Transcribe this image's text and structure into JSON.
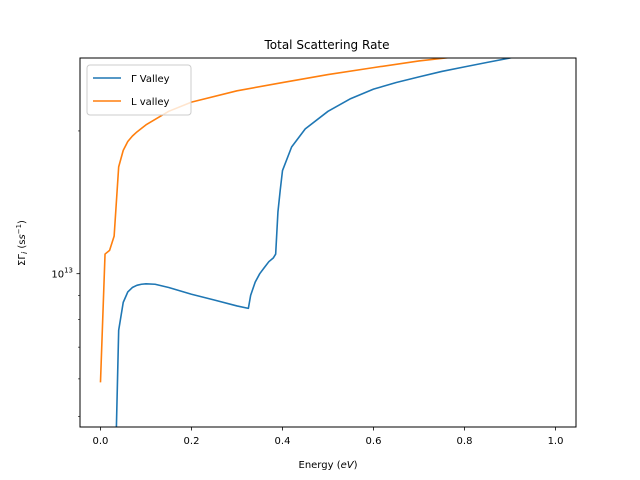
{
  "chart_data": {
    "type": "line",
    "title": "Total Scattering Rate",
    "xlabel_main": "Energy (",
    "xlabel_unit": "eV",
    "xlabel_close": ")",
    "ylabel_main": "ΣΓ",
    "ylabel_sub": "i",
    "ylabel_unit_open": " (s",
    "ylabel_unit_sup": "−1",
    "ylabel_unit_close": ")",
    "xlim": [
      -0.045,
      1.045
    ],
    "ylim": [
      4750000000000.0,
      28500000000000.0
    ],
    "yscale": "log",
    "grid": false,
    "legend_position": "upper-left",
    "x_ticks": [
      {
        "value": 0.0,
        "label": "0.0"
      },
      {
        "value": 0.2,
        "label": "0.2"
      },
      {
        "value": 0.4,
        "label": "0.4"
      },
      {
        "value": 0.6,
        "label": "0.6"
      },
      {
        "value": 0.8,
        "label": "0.8"
      },
      {
        "value": 1.0,
        "label": "1.0"
      }
    ],
    "y_major_ticks": [
      {
        "value": 10000000000000.0,
        "label_base": "10",
        "label_exp": "13"
      }
    ],
    "y_minor_ticks": [
      5000000000000.0,
      6000000000000.0,
      7000000000000.0,
      8000000000000.0,
      9000000000000.0,
      20000000000000.0
    ],
    "series": [
      {
        "name": "Γ Valley",
        "color": "#1f77b4",
        "x": [
          0.035,
          0.04,
          0.05,
          0.06,
          0.07,
          0.08,
          0.09,
          0.1,
          0.12,
          0.15,
          0.2,
          0.25,
          0.3,
          0.325,
          0.33,
          0.34,
          0.35,
          0.36,
          0.37,
          0.38,
          0.385,
          0.39,
          0.395,
          0.4,
          0.42,
          0.45,
          0.5,
          0.55,
          0.6,
          0.65,
          0.7,
          0.75,
          0.8,
          0.85,
          0.9,
          0.95,
          1.0
        ],
        "y": [
          4750000000000.0,
          7600000000000.0,
          8700000000000.0,
          9150000000000.0,
          9350000000000.0,
          9450000000000.0,
          9500000000000.0,
          9520000000000.0,
          9500000000000.0,
          9350000000000.0,
          9050000000000.0,
          8800000000000.0,
          8550000000000.0,
          8450000000000.0,
          9000000000000.0,
          9600000000000.0,
          10000000000000.0,
          10300000000000.0,
          10600000000000.0,
          10800000000000.0,
          11000000000000.0,
          13500000000000.0,
          15000000000000.0,
          16500000000000.0,
          18500000000000.0,
          20200000000000.0,
          22000000000000.0,
          23400000000000.0,
          24500000000000.0,
          25300000000000.0,
          26000000000000.0,
          26700000000000.0,
          27300000000000.0,
          27900000000000.0,
          28500000000000.0,
          29100000000000.0,
          29600000000000.0
        ]
      },
      {
        "name": "L valley",
        "color": "#ff7f0e",
        "x": [
          0.0,
          0.01,
          0.02,
          0.03,
          0.04,
          0.05,
          0.06,
          0.07,
          0.08,
          0.1,
          0.15,
          0.2,
          0.3,
          0.4,
          0.5,
          0.6,
          0.7,
          0.8,
          0.9,
          1.0
        ],
        "y": [
          5900000000000.0,
          11000000000000.0,
          11200000000000.0,
          12000000000000.0,
          16800000000000.0,
          18200000000000.0,
          19000000000000.0,
          19500000000000.0,
          19900000000000.0,
          20600000000000.0,
          22000000000000.0,
          23000000000000.0,
          24300000000000.0,
          25300000000000.0,
          26300000000000.0,
          27200000000000.0,
          28100000000000.0,
          28800000000000.0,
          29500000000000.0,
          30200000000000.0
        ]
      }
    ]
  }
}
